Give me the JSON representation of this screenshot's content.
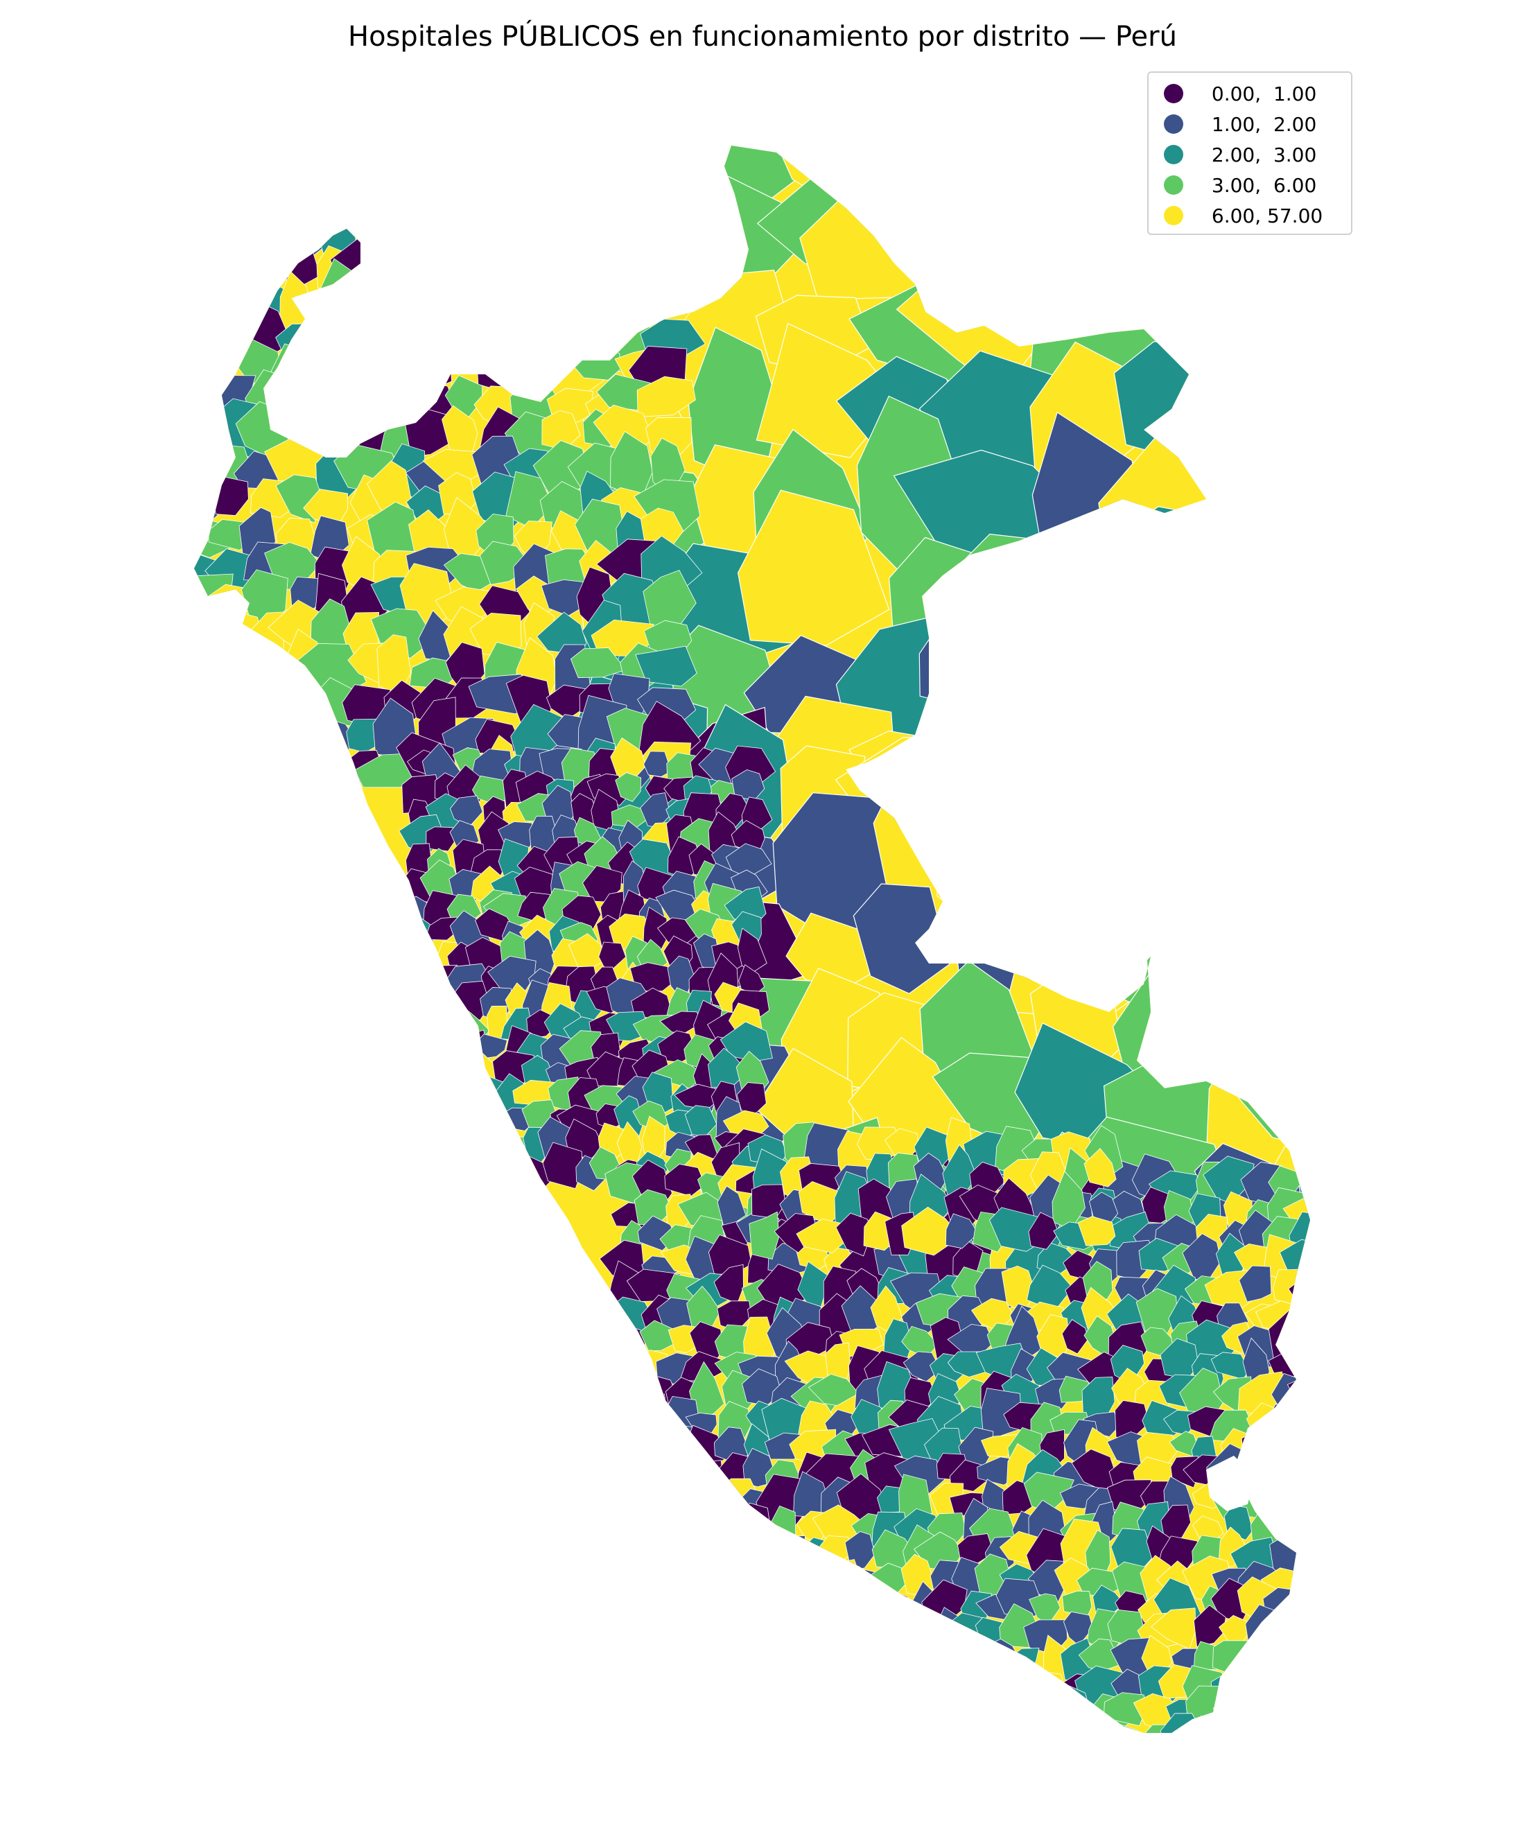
{
  "title": "Hospitales PÚBLICOS en funcionamiento por distrito — Perú",
  "legend": [
    {
      "label": " 0.00,  1.00",
      "color": "#440154"
    },
    {
      "label": " 1.00,  2.00",
      "color": "#3b528b"
    },
    {
      "label": " 2.00,  3.00",
      "color": "#21918c"
    },
    {
      "label": " 3.00,  6.00",
      "color": "#5ec962"
    },
    {
      "label": " 6.00, 57.00",
      "color": "#fde725"
    }
  ],
  "chart_data": {
    "type": "choropleth",
    "title": "Hospitales PÚBLICOS en funcionamiento por distrito — Perú",
    "classification": "quantiles",
    "classes": [
      {
        "range": [
          0.0,
          1.0
        ],
        "color": "#440154"
      },
      {
        "range": [
          1.0,
          2.0
        ],
        "color": "#3b528b"
      },
      {
        "range": [
          2.0,
          3.0
        ],
        "color": "#21918c"
      },
      {
        "range": [
          3.0,
          6.0
        ],
        "color": "#5ec962"
      },
      {
        "range": [
          6.0,
          57.0
        ],
        "color": "#fde725"
      }
    ],
    "legend_position": "top-right",
    "axes_visible": false
  }
}
